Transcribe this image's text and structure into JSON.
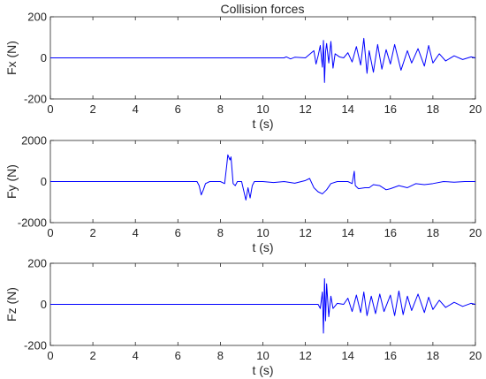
{
  "figure": {
    "title": "Collision forces"
  },
  "chart_data": [
    {
      "type": "line",
      "title": "Collision forces",
      "xlabel": "t (s)",
      "ylabel": "Fx (N)",
      "xlim": [
        0,
        20
      ],
      "ylim": [
        -200,
        200
      ],
      "xticks": [
        0,
        2,
        4,
        6,
        8,
        10,
        12,
        14,
        16,
        18,
        20
      ],
      "yticks": [
        -200,
        0,
        200
      ],
      "color": "#0000ff",
      "grid": false,
      "x": [
        0,
        11.0,
        11.1,
        11.3,
        11.5,
        12.0,
        12.4,
        12.5,
        12.6,
        12.7,
        12.8,
        12.85,
        12.9,
        12.95,
        13.0,
        13.1,
        13.2,
        13.3,
        13.4,
        13.6,
        13.8,
        14.0,
        14.2,
        14.4,
        14.6,
        14.75,
        14.9,
        15.0,
        15.2,
        15.4,
        15.6,
        15.8,
        16.0,
        16.2,
        16.5,
        16.8,
        17.0,
        17.3,
        17.6,
        17.8,
        18.0,
        18.3,
        18.6,
        19.0,
        19.4,
        19.8,
        20
      ],
      "y": [
        0,
        0,
        5,
        -5,
        3,
        0,
        35,
        -30,
        10,
        60,
        -45,
        85,
        -120,
        30,
        70,
        -25,
        80,
        -50,
        20,
        5,
        0,
        25,
        -20,
        55,
        -35,
        95,
        -75,
        35,
        -70,
        65,
        -55,
        40,
        -30,
        65,
        -60,
        35,
        -25,
        45,
        -40,
        60,
        -25,
        20,
        -15,
        10,
        -8,
        5,
        0
      ]
    },
    {
      "type": "line",
      "xlabel": "t (s)",
      "ylabel": "Fy (N)",
      "xlim": [
        0,
        20
      ],
      "ylim": [
        -2000,
        2000
      ],
      "xticks": [
        0,
        2,
        4,
        6,
        8,
        10,
        12,
        14,
        16,
        18,
        20
      ],
      "yticks": [
        -2000,
        0,
        2000
      ],
      "color": "#0000ff",
      "grid": false,
      "x": [
        0,
        6.9,
        7.0,
        7.1,
        7.2,
        7.3,
        7.5,
        8.0,
        8.2,
        8.3,
        8.35,
        8.45,
        8.5,
        8.6,
        8.7,
        8.8,
        9.0,
        9.2,
        9.3,
        9.4,
        9.5,
        9.6,
        9.8,
        10.0,
        10.5,
        11.0,
        11.5,
        12.0,
        12.2,
        12.4,
        12.6,
        12.8,
        13.0,
        13.2,
        13.5,
        14.0,
        14.2,
        14.3,
        14.35,
        14.5,
        14.8,
        15.0,
        15.2,
        15.5,
        15.8,
        16.0,
        16.4,
        16.8,
        17.2,
        17.6,
        18.0,
        18.5,
        19.0,
        19.5,
        20
      ],
      "y": [
        0,
        0,
        -200,
        -650,
        -400,
        -100,
        0,
        0,
        -100,
        800,
        1300,
        1050,
        1200,
        -100,
        -200,
        0,
        0,
        -900,
        -300,
        -800,
        -200,
        0,
        0,
        0,
        -50,
        0,
        -80,
        50,
        150,
        -300,
        -500,
        -600,
        -400,
        -100,
        0,
        0,
        -100,
        500,
        -200,
        -350,
        -300,
        -300,
        -150,
        -200,
        -400,
        -350,
        -200,
        -300,
        -100,
        -150,
        -100,
        0,
        -30,
        0,
        0
      ]
    },
    {
      "type": "line",
      "xlabel": "t (s)",
      "ylabel": "Fz (N)",
      "xlim": [
        0,
        20
      ],
      "ylim": [
        -200,
        200
      ],
      "xticks": [
        0,
        2,
        4,
        6,
        8,
        10,
        12,
        14,
        16,
        18,
        20
      ],
      "yticks": [
        -200,
        0,
        200
      ],
      "color": "#0000ff",
      "grid": false,
      "x": [
        0,
        12.6,
        12.7,
        12.8,
        12.85,
        12.9,
        12.95,
        13.0,
        13.1,
        13.2,
        13.3,
        13.5,
        13.8,
        14.0,
        14.2,
        14.4,
        14.6,
        14.75,
        14.9,
        15.1,
        15.3,
        15.5,
        15.7,
        16.0,
        16.2,
        16.4,
        16.6,
        16.8,
        17.0,
        17.3,
        17.6,
        17.8,
        18.0,
        18.3,
        18.6,
        19.0,
        19.4,
        19.8,
        20
      ],
      "y": [
        0,
        0,
        -20,
        60,
        -140,
        125,
        -80,
        100,
        -60,
        40,
        -20,
        5,
        0,
        30,
        -35,
        45,
        -40,
        60,
        -55,
        40,
        -45,
        50,
        -35,
        45,
        -55,
        65,
        -50,
        40,
        -30,
        50,
        -40,
        35,
        -25,
        20,
        -15,
        10,
        -10,
        5,
        0
      ]
    }
  ]
}
